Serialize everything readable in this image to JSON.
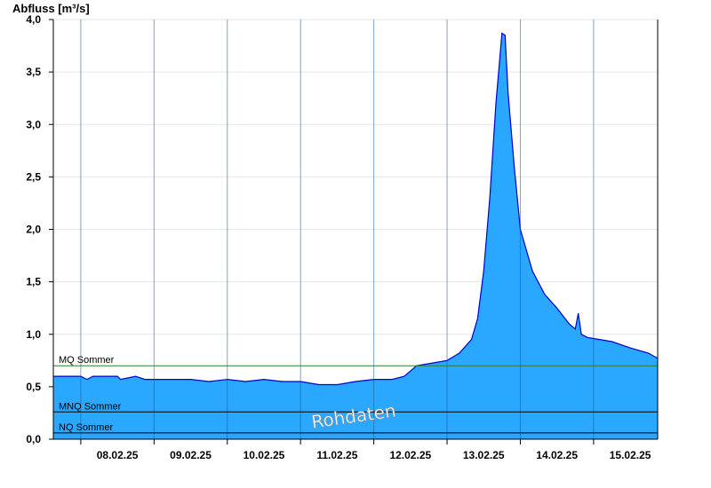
{
  "chart_data": {
    "type": "area",
    "ylabel": "Abfluss [m³/s]",
    "ylim": [
      0,
      4.0
    ],
    "xlim": [
      "2025-02-07T15:00",
      "2025-02-15T21:00"
    ],
    "yticks": [
      "0,0",
      "0,5",
      "1,0",
      "1,5",
      "2,0",
      "2,5",
      "3,0",
      "3,5",
      "4,0"
    ],
    "xticks": [
      "08.02.25",
      "09.02.25",
      "10.02.25",
      "11.02.25",
      "12.02.25",
      "13.02.25",
      "14.02.25",
      "15.02.25"
    ],
    "grid": true,
    "watermark": "Rohdaten",
    "reference_lines": [
      {
        "name": "MQ Sommer",
        "value": 0.7,
        "color": "#2e7d32"
      },
      {
        "name": "MNQ Sommer",
        "value": 0.26,
        "color": "#000000"
      },
      {
        "name": "NQ Sommer",
        "value": 0.06,
        "color": "#000000"
      }
    ],
    "series": [
      {
        "color": "#2aa7ff",
        "line_color": "#0000cc",
        "x": [
          "2025-02-07T15:00",
          "2025-02-08T00:00",
          "2025-02-08T02:00",
          "2025-02-08T04:00",
          "2025-02-08T12:00",
          "2025-02-08T13:00",
          "2025-02-08T18:00",
          "2025-02-08T21:00",
          "2025-02-09T00:00",
          "2025-02-09T06:00",
          "2025-02-09T12:00",
          "2025-02-09T18:00",
          "2025-02-10T00:00",
          "2025-02-10T06:00",
          "2025-02-10T12:00",
          "2025-02-10T18:00",
          "2025-02-11T00:00",
          "2025-02-11T06:00",
          "2025-02-11T12:00",
          "2025-02-11T18:00",
          "2025-02-12T00:00",
          "2025-02-12T06:00",
          "2025-02-12T10:00",
          "2025-02-12T14:00",
          "2025-02-12T18:00",
          "2025-02-13T00:00",
          "2025-02-13T04:00",
          "2025-02-13T08:00",
          "2025-02-13T10:00",
          "2025-02-13T12:00",
          "2025-02-13T14:00",
          "2025-02-13T16:00",
          "2025-02-13T18:00",
          "2025-02-13T19:00",
          "2025-02-13T20:00",
          "2025-02-13T22:00",
          "2025-02-14T00:00",
          "2025-02-14T04:00",
          "2025-02-14T08:00",
          "2025-02-14T12:00",
          "2025-02-14T16:00",
          "2025-02-14T18:00",
          "2025-02-14T19:00",
          "2025-02-14T20:00",
          "2025-02-14T22:00",
          "2025-02-15T00:00",
          "2025-02-15T06:00",
          "2025-02-15T12:00",
          "2025-02-15T18:00",
          "2025-02-15T21:00"
        ],
        "y": [
          0.6,
          0.6,
          0.57,
          0.6,
          0.6,
          0.57,
          0.6,
          0.57,
          0.57,
          0.57,
          0.57,
          0.55,
          0.57,
          0.55,
          0.57,
          0.55,
          0.55,
          0.52,
          0.52,
          0.55,
          0.57,
          0.57,
          0.6,
          0.7,
          0.72,
          0.75,
          0.82,
          0.95,
          1.15,
          1.6,
          2.3,
          3.2,
          3.87,
          3.85,
          3.3,
          2.6,
          2.0,
          1.6,
          1.38,
          1.25,
          1.1,
          1.05,
          1.2,
          1.0,
          0.97,
          0.96,
          0.93,
          0.87,
          0.82,
          0.77
        ]
      }
    ]
  }
}
